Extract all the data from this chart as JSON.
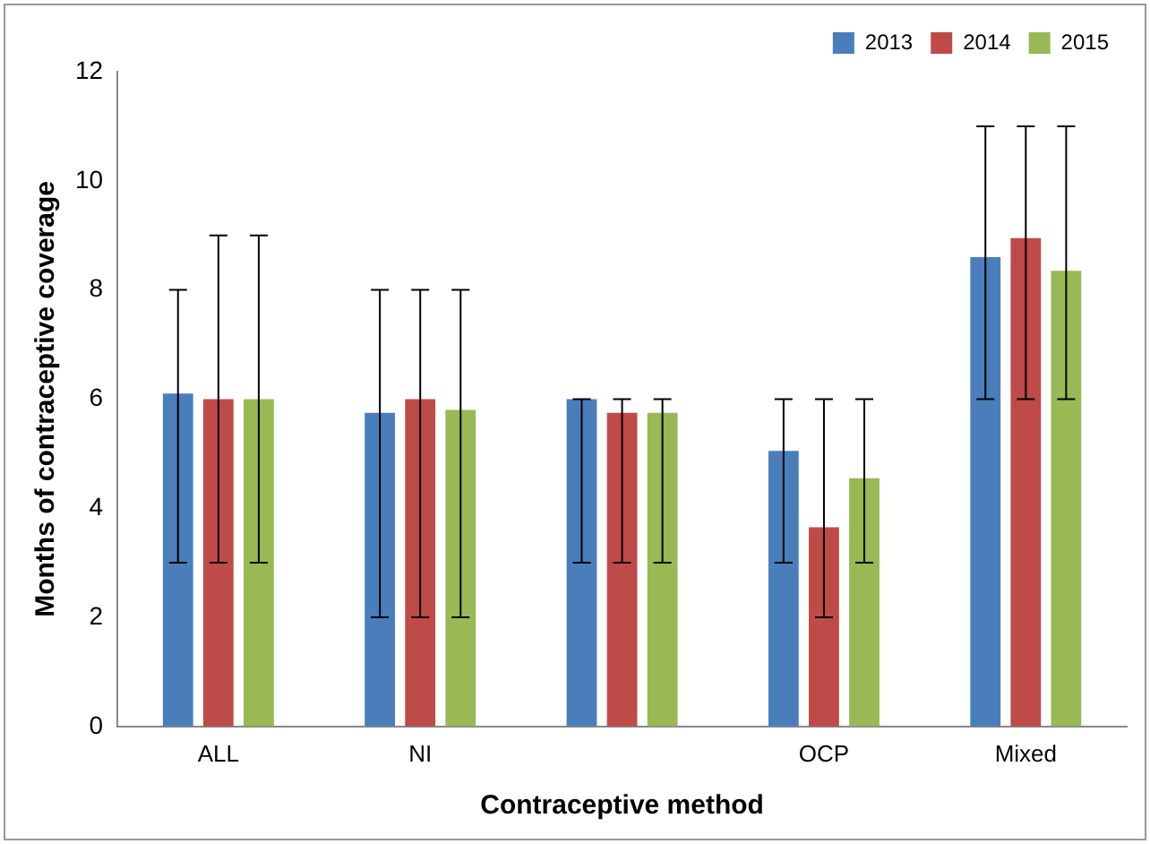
{
  "chart_data": {
    "type": "bar",
    "xlabel": "Contraceptive method",
    "ylabel": "Months of contraceptive coverage",
    "categories": [
      "ALL",
      "NI",
      null,
      "OCP",
      "Mixed"
    ],
    "series": [
      {
        "name": "2013",
        "color": "#4a7ebb",
        "values": [
          6.1,
          5.75,
          6.0,
          5.05,
          8.6
        ],
        "errors": [
          [
            3,
            8
          ],
          [
            2,
            8
          ],
          [
            3,
            6
          ],
          [
            3,
            6
          ],
          [
            6,
            11
          ]
        ]
      },
      {
        "name": "2014",
        "color": "#be4b48",
        "values": [
          6.0,
          6.0,
          5.75,
          3.65,
          8.95
        ],
        "errors": [
          [
            3,
            9
          ],
          [
            2,
            8
          ],
          [
            3,
            6
          ],
          [
            2,
            6
          ],
          [
            6,
            11
          ]
        ]
      },
      {
        "name": "2015",
        "color": "#98b954",
        "values": [
          6.0,
          5.8,
          5.75,
          4.55,
          8.35
        ],
        "errors": [
          [
            3,
            9
          ],
          [
            2,
            8
          ],
          [
            3,
            6
          ],
          [
            3,
            6
          ],
          [
            6,
            11
          ]
        ]
      }
    ],
    "ylim": [
      0,
      12
    ],
    "yticks": [
      0,
      2,
      4,
      6,
      8,
      10,
      12
    ],
    "grid": false,
    "legend": "top right"
  }
}
